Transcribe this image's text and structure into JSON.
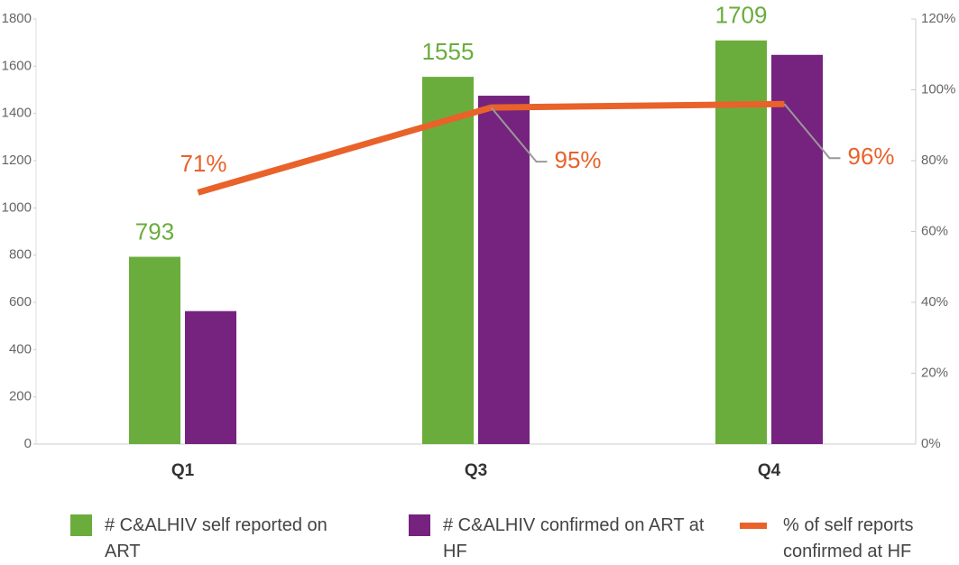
{
  "chart_data": {
    "type": "bar",
    "categories": [
      "Q1",
      "Q3",
      "Q4"
    ],
    "series": [
      {
        "name": "# C&ALHIV self reported on ART",
        "color": "#6aad3d",
        "values": [
          793,
          1555,
          1709
        ]
      },
      {
        "name": "# C&ALHIV confirmed on ART at HF",
        "color": "#76227f",
        "values": [
          563,
          1475,
          1648
        ]
      },
      {
        "name": "% of self reports confirmed at HF",
        "color": "#e8622a",
        "type": "line",
        "axis": "y2",
        "values": [
          71,
          95,
          96
        ],
        "value_labels": [
          "71%",
          "95%",
          "96%"
        ]
      }
    ],
    "ylim": [
      0,
      1800
    ],
    "yticks": [
      0,
      200,
      400,
      600,
      800,
      1000,
      1200,
      1400,
      1600,
      1800
    ],
    "y2lim": [
      0,
      120
    ],
    "y2ticks": [
      {
        "value": 0,
        "label": "0%"
      },
      {
        "value": 20,
        "label": "20%"
      },
      {
        "value": 40,
        "label": "40%"
      },
      {
        "value": 60,
        "label": "60%"
      },
      {
        "value": 80,
        "label": "80%"
      },
      {
        "value": 100,
        "label": "100%"
      },
      {
        "value": 120,
        "label": "120%"
      }
    ],
    "legend": "bottom"
  }
}
